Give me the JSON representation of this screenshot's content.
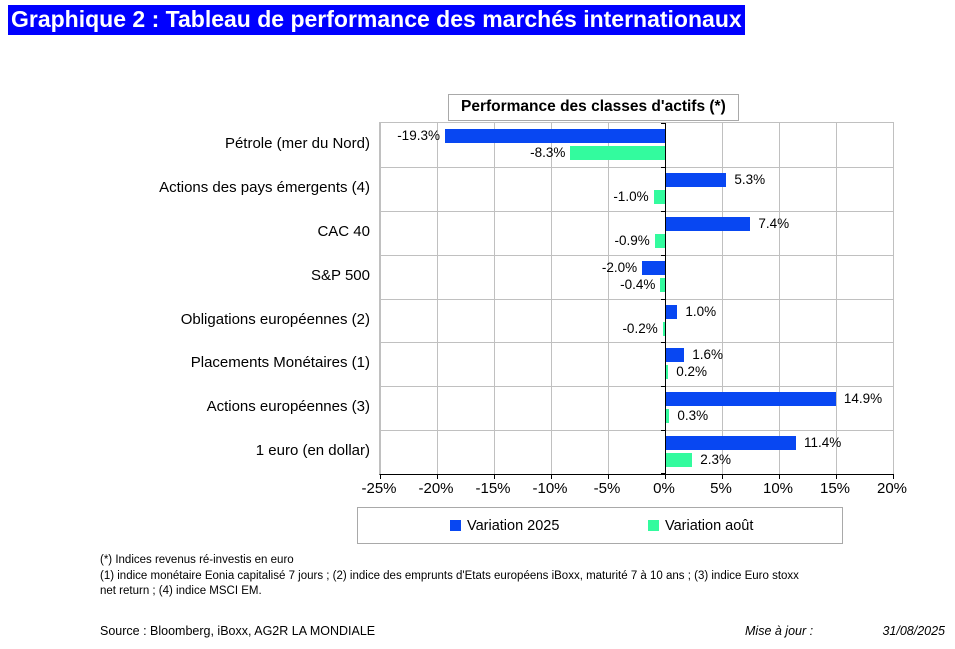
{
  "page_title": "Graphique 2 : Tableau de performance des marchés internationaux",
  "chart_data": {
    "type": "bar",
    "orientation": "horizontal",
    "title": "Performance des classes d'actifs (*)",
    "categories": [
      "Pétrole (mer du Nord)",
      "Actions des pays émergents (4)",
      "CAC 40",
      "S&P 500",
      "Obligations européennes (2)",
      "Placements Monétaires (1)",
      "Actions européennes (3)",
      "1 euro (en dollar)"
    ],
    "series": [
      {
        "name": "Variation 2025",
        "color": "#0847F2",
        "values": [
          -19.3,
          5.3,
          7.4,
          -2.0,
          1.0,
          1.6,
          14.9,
          11.4
        ],
        "labels": [
          "-19.3%",
          "5.3%",
          "7.4%",
          "-2.0%",
          "1.0%",
          "1.6%",
          "14.9%",
          "11.4%"
        ]
      },
      {
        "name": "Variation août",
        "color": "#33FB9E",
        "values": [
          -8.3,
          -1.0,
          -0.9,
          -0.4,
          -0.2,
          0.2,
          0.3,
          2.3
        ],
        "labels": [
          "-8.3%",
          "-1.0%",
          "-0.9%",
          "-0.4%",
          "-0.2%",
          "0.2%",
          "0.3%",
          "2.3%"
        ]
      }
    ],
    "xlim": [
      -25,
      20
    ],
    "xtick_values": [
      -25,
      -20,
      -15,
      -10,
      -5,
      0,
      5,
      10,
      15,
      20
    ],
    "xtick_labels": [
      "-25%",
      "-20%",
      "-15%",
      "-10%",
      "-5%",
      "0%",
      "5%",
      "10%",
      "15%",
      "20%"
    ],
    "grid": true,
    "legend_position": "bottom",
    "grid_color": "#C0C0C0"
  },
  "footnotes": {
    "lines": [
      "(*) Indices revenus  ré-investis  en euro",
      "(1) indice monétaire Eonia capitalisé 7 jours ; (2) indice des emprunts d'Etats européens  iBoxx, maturité 7 à 10 ans  ; (3) indice Euro stoxx",
      "net return  ; (4) indice MSCI EM."
    ]
  },
  "source": {
    "text": "Source : Bloomberg, iBoxx, AG2R LA MONDIALE",
    "update_label": "Mise à jour :",
    "update_date": "31/08/2025"
  }
}
